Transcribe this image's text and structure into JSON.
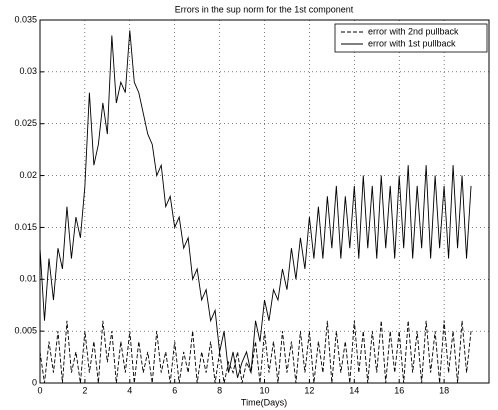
{
  "chart_data": {
    "type": "line",
    "title": "Errors in the sup norm for the 1st component",
    "xlabel": "Time(Days)",
    "x": [
      0,
      0.2,
      0.4,
      0.6,
      0.8,
      1,
      1.2,
      1.4,
      1.6,
      1.8,
      2,
      2.2,
      2.4,
      2.6,
      2.8,
      3,
      3.2,
      3.4,
      3.6,
      3.8,
      4,
      4.2,
      4.4,
      4.6,
      4.8,
      5,
      5.2,
      5.4,
      5.6,
      5.8,
      6,
      6.2,
      6.4,
      6.6,
      6.8,
      7,
      7.2,
      7.4,
      7.6,
      7.8,
      8,
      8.2,
      8.4,
      8.6,
      8.8,
      9,
      9.2,
      9.4,
      9.6,
      9.8,
      10,
      10.2,
      10.4,
      10.6,
      10.8,
      11,
      11.2,
      11.4,
      11.6,
      11.8,
      12,
      12.2,
      12.4,
      12.6,
      12.8,
      13,
      13.2,
      13.4,
      13.6,
      13.8,
      14,
      14.2,
      14.4,
      14.6,
      14.8,
      15,
      15.2,
      15.4,
      15.6,
      15.8,
      16,
      16.2,
      16.4,
      16.6,
      16.8,
      17,
      17.2,
      17.4,
      17.6,
      17.8,
      18,
      18.2,
      18.4,
      18.6,
      18.8,
      19,
      19.2
    ],
    "series": [
      {
        "name": "error with 2nd pullback",
        "color": "#000000",
        "dash": true,
        "values": [
          0.003,
          0,
          0.004,
          0.001,
          0.005,
          0,
          0.006,
          0.001,
          0.003,
          0,
          0.005,
          0.001,
          0.004,
          0,
          0.006,
          0.002,
          0.005,
          0,
          0.004,
          0.001,
          0.005,
          0,
          0.004,
          0.001,
          0.003,
          0,
          0.005,
          0.001,
          0.003,
          0,
          0.004,
          0,
          0.003,
          0.001,
          0.005,
          0,
          0.003,
          0.001,
          0.004,
          0,
          0.003,
          0,
          0.002,
          0.001,
          0.003,
          0,
          0.002,
          0.001,
          0.004,
          0,
          0.005,
          0.001,
          0.004,
          0,
          0.005,
          0.001,
          0.004,
          0,
          0.005,
          0.001,
          0.005,
          0,
          0.004,
          0.001,
          0.006,
          0,
          0.005,
          0.001,
          0.004,
          0,
          0.006,
          0.001,
          0.005,
          0,
          0.005,
          0.001,
          0.006,
          0,
          0.005,
          0.001,
          0.005,
          0,
          0.006,
          0.001,
          0.005,
          0,
          0.006,
          0.001,
          0.005,
          0,
          0.006,
          0.001,
          0.005,
          0,
          0.006,
          0.001,
          0.005
        ]
      },
      {
        "name": "error with 1st pullback",
        "color": "#000000",
        "dash": false,
        "values": [
          0.013,
          0.006,
          0.012,
          0.008,
          0.013,
          0.011,
          0.017,
          0.012,
          0.016,
          0.014,
          0.019,
          0.028,
          0.021,
          0.023,
          0.027,
          0.024,
          0.0335,
          0.027,
          0.029,
          0.028,
          0.034,
          0.029,
          0.028,
          0.026,
          0.024,
          0.023,
          0.02,
          0.021,
          0.017,
          0.018,
          0.015,
          0.016,
          0.013,
          0.014,
          0.01,
          0.011,
          0.008,
          0.009,
          0.006,
          0.007,
          0.003,
          0.005,
          0.001,
          0.003,
          0.0005,
          0.002,
          0.003,
          0.001,
          0.006,
          0.004,
          0.008,
          0.006,
          0.009,
          0.008,
          0.011,
          0.009,
          0.013,
          0.01,
          0.014,
          0.011,
          0.016,
          0.012,
          0.017,
          0.012,
          0.018,
          0.013,
          0.019,
          0.012,
          0.018,
          0.013,
          0.019,
          0.012,
          0.02,
          0.013,
          0.019,
          0.012,
          0.02,
          0.013,
          0.019,
          0.012,
          0.02,
          0.013,
          0.021,
          0.012,
          0.019,
          0.013,
          0.021,
          0.012,
          0.02,
          0.013,
          0.019,
          0.012,
          0.021,
          0.013,
          0.02,
          0.012,
          0.019
        ]
      }
    ],
    "xlim": [
      0,
      20
    ],
    "xticks": [
      0,
      2,
      4,
      6,
      8,
      10,
      12,
      14,
      16,
      18
    ],
    "ylim": [
      0,
      0.035
    ],
    "yticks": [
      0,
      0.005,
      0.01,
      0.015,
      0.02,
      0.025,
      0.03,
      0.035
    ],
    "grid": true,
    "legend": "upper right"
  }
}
